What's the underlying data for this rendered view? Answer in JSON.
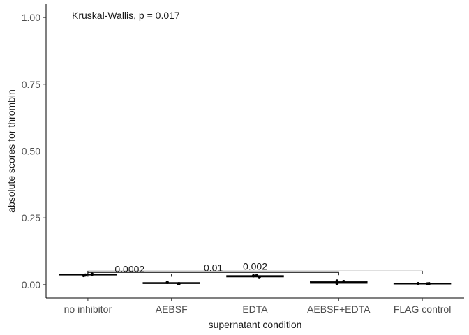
{
  "chart_data": {
    "type": "boxplot",
    "title": "",
    "xlabel": "supernatant condition",
    "ylabel": "absolute scores for thrombin",
    "ylim": [
      -0.05,
      1.05
    ],
    "yticks": [
      0.0,
      0.25,
      0.5,
      0.75,
      1.0
    ],
    "ytick_labels": [
      "0.00",
      "0.25",
      "0.50",
      "0.75",
      "1.00"
    ],
    "categories": [
      "no inhibitor",
      "AEBSF",
      "EDTA",
      "AEBSF+EDTA",
      "FLAG control"
    ],
    "boxes": [
      {
        "q1": 0.036,
        "median": 0.038,
        "q3": 0.04,
        "points": [
          0.034,
          0.036,
          0.039
        ]
      },
      {
        "q1": 0.004,
        "median": 0.006,
        "q3": 0.008,
        "points": [
          0.008,
          0.003,
          0.004
        ]
      },
      {
        "q1": 0.029,
        "median": 0.032,
        "q3": 0.034,
        "points": [
          0.033,
          0.034,
          0.027
        ]
      },
      {
        "q1": 0.005,
        "median": 0.009,
        "q3": 0.013,
        "points": [
          0.014,
          0.004,
          0.012
        ]
      },
      {
        "q1": 0.003,
        "median": 0.004,
        "q3": 0.005,
        "points": [
          0.004,
          0.003,
          0.004
        ]
      }
    ],
    "point_offsets": [
      [
        -0.05,
        -0.03,
        0.05
      ],
      [
        -0.05,
        0.08,
        0.09
      ],
      [
        -0.02,
        0.02,
        0.05
      ],
      [
        -0.02,
        -0.02,
        0.06
      ],
      [
        -0.05,
        0.06,
        0.08
      ]
    ],
    "comparisons": [
      {
        "from": 0,
        "to": 1,
        "y": 0.04,
        "label": "0.0002"
      },
      {
        "from": 0,
        "to": 3,
        "y": 0.046,
        "label": "0.01"
      },
      {
        "from": 0,
        "to": 4,
        "y": 0.051,
        "label": "0.002"
      }
    ],
    "annotation": "Kruskal-Wallis, p = 0.017",
    "grid": false,
    "legend": "none"
  }
}
